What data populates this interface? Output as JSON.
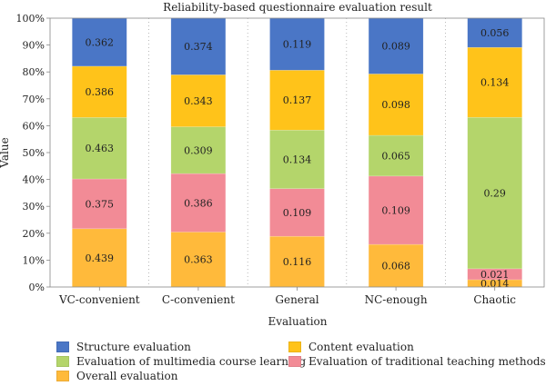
{
  "chart_data": {
    "type": "bar",
    "stacked": true,
    "title": "Reliability-based questionnaire evaluation result",
    "xlabel": "Evaluation",
    "ylabel": "Value",
    "categories": [
      "VC-convenient",
      "C-convenient",
      "General",
      "NC-enough",
      "Chaotic"
    ],
    "y_ticks": [
      "0%",
      "10%",
      "20%",
      "30%",
      "40%",
      "50%",
      "60%",
      "70%",
      "80%",
      "90%",
      "100%"
    ],
    "ylim": [
      0,
      100
    ],
    "grid": "vertical dotted",
    "legend_position": "bottom",
    "series": [
      {
        "name": "Overall evaluation",
        "color": "#FFBA3B",
        "values": [
          0.439,
          0.363,
          0.116,
          0.068,
          0.014
        ]
      },
      {
        "name": "Evaluation of traditional teaching methods",
        "color": "#F28B96",
        "values": [
          0.375,
          0.386,
          0.109,
          0.109,
          0.021
        ]
      },
      {
        "name": "Evaluation of multimedia course learning",
        "color": "#B4D56B",
        "values": [
          0.463,
          0.309,
          0.134,
          0.065,
          0.29
        ]
      },
      {
        "name": "Content evaluation",
        "color": "#FFC31A",
        "values": [
          0.386,
          0.343,
          0.137,
          0.098,
          0.134
        ]
      },
      {
        "name": "Structure evaluation",
        "color": "#4A76C6",
        "values": [
          0.362,
          0.374,
          0.119,
          0.089,
          0.056
        ]
      }
    ],
    "legend_order": [
      "Structure evaluation",
      "Content evaluation",
      "Evaluation of multimedia course learning",
      "Evaluation of traditional teaching methods",
      "Overall evaluation"
    ]
  }
}
